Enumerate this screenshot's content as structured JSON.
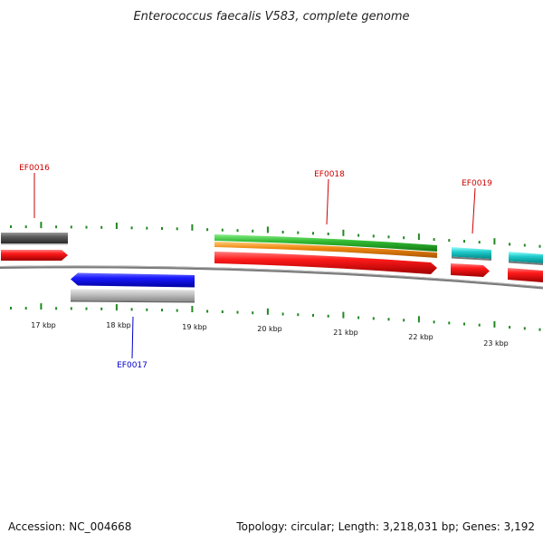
{
  "title": "Enterococcus faecalis V583, complete genome",
  "footer": {
    "accession": "Accession: NC_004668",
    "stats": "Topology: circular; Length: 3,218,031 bp; Genes: 3,192"
  },
  "scale": {
    "labels": [
      "17 kbp",
      "18 kbp",
      "19 kbp",
      "20 kbp",
      "21 kbp",
      "22 kbp",
      "23 kbp"
    ]
  },
  "genes": [
    {
      "id": "EF0016",
      "color": "#cc0000"
    },
    {
      "id": "EF0017",
      "color": "#0000cc"
    },
    {
      "id": "EF0018",
      "color": "#cc0000"
    },
    {
      "id": "EF0019",
      "color": "#cc0000"
    }
  ],
  "colors": {
    "forward_cds": "#ee1111",
    "reverse_cds": "#1111ee",
    "grey_feature": "#555555",
    "light_grey_feature": "#bbbbbb",
    "green_feature": "#33bb33",
    "orange_feature": "#ee8811",
    "cyan_feature": "#22cccc",
    "backbone": "#777777",
    "tick": "#228822"
  }
}
